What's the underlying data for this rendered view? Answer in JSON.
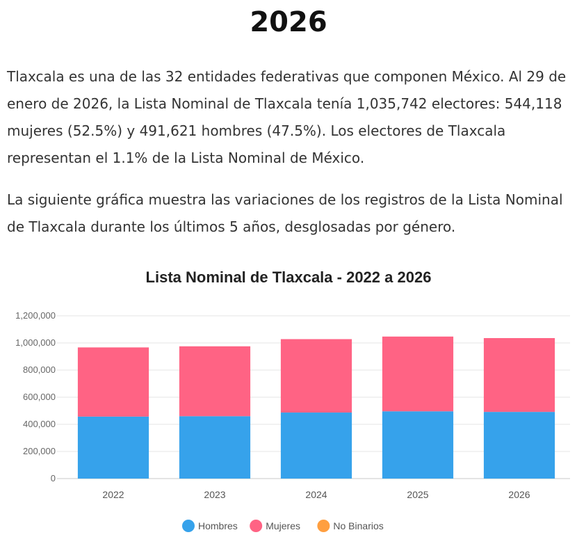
{
  "page": {
    "heading": "2026",
    "paragraph1": "Tlaxcala es una de las 32 entidades federativas que componen México. Al 29 de enero de 2026, la Lista Nominal de Tlaxcala tenía 1,035,742 electores: 544,118 mujeres (52.5%) y 491,621 hombres (47.5%). Los electores de Tlaxcala representan el 1.1% de la Lista Nominal de México.",
    "paragraph2": "La siguiente gráfica muestra las variaciones de los registros de la Lista Nominal de Tlaxcala durante los últimos 5 años, desglosadas por género."
  },
  "chart_data": {
    "type": "bar",
    "stacked": true,
    "title": "Lista Nominal de Tlaxcala - 2022 a 2026",
    "categories": [
      "2022",
      "2023",
      "2024",
      "2025",
      "2026"
    ],
    "series": [
      {
        "name": "Hombres",
        "color": "#36a2eb",
        "values": [
          457000,
          460000,
          487000,
          496000,
          491621
        ]
      },
      {
        "name": "Mujeres",
        "color": "#ff6384",
        "values": [
          510000,
          515000,
          541000,
          551000,
          544118
        ]
      },
      {
        "name": "No Binarios",
        "color": "#ff9f40",
        "values": [
          0,
          0,
          0,
          0,
          0
        ]
      }
    ],
    "ylim": [
      0,
      1200000
    ],
    "yticks": [
      "0",
      "200,000",
      "400,000",
      "600,000",
      "800,000",
      "1,000,000",
      "1,200,000"
    ],
    "grid": true,
    "legend_position": "bottom"
  }
}
